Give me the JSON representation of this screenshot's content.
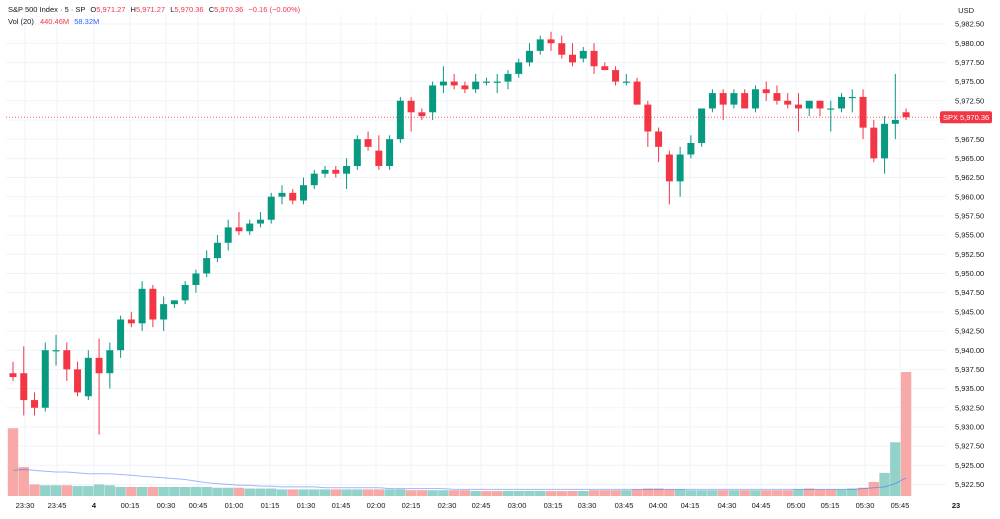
{
  "header": {
    "symbol": "S&P 500 Index · 5 · SP",
    "o_label": "O",
    "o_value": "5,971.27",
    "h_label": "H",
    "h_value": "5,971.27",
    "l_label": "L",
    "l_value": "5,970.36",
    "c_label": "C",
    "c_value": "5,970.36",
    "change": "−0.16 (−0.00%)",
    "vol_label": "Vol (20)",
    "vol_value": "440.46M",
    "vol_ma_value": "58.32M"
  },
  "currency": "USD",
  "price_tag": {
    "symbol": "SPX",
    "value": "5,970.36"
  },
  "chart_data": {
    "type": "candlestick",
    "title": "",
    "interval": "5",
    "ylim": [
      5920,
      5985
    ],
    "y_ticks": [
      "5,922.50",
      "5,925.00",
      "5,927.50",
      "5,930.00",
      "5,932.50",
      "5,935.00",
      "5,937.50",
      "5,940.00",
      "5,942.50",
      "5,945.00",
      "5,947.50",
      "5,950.00",
      "5,952.50",
      "5,955.00",
      "5,957.50",
      "5,960.00",
      "5,962.50",
      "5,965.00",
      "5,967.50",
      "5,970.00",
      "5,972.50",
      "5,975.00",
      "5,977.50",
      "5,980.00",
      "5,982.50"
    ],
    "x_ticks": [
      "23:30",
      "23:45",
      "4",
      "00:15",
      "00:30",
      "00:45",
      "01:00",
      "01:15",
      "01:30",
      "01:45",
      "02:00",
      "02:15",
      "02:30",
      "02:45",
      "03:00",
      "03:15",
      "03:30",
      "03:45",
      "04:00",
      "04:15",
      "04:30",
      "04:45",
      "05:00",
      "05:15",
      "05:30",
      "05:45",
      "23"
    ],
    "last_price": 5970.36,
    "colors": {
      "up": "#089981",
      "down": "#f23645",
      "vol_up": "#92d2c8",
      "vol_down": "#f7a9a7",
      "vol_ma": "#2962ff"
    },
    "candles": [
      {
        "o": 5937.0,
        "h": 5938.5,
        "l": 5936.0,
        "c": 5936.5
      },
      {
        "o": 5937.0,
        "h": 5940.5,
        "l": 5931.5,
        "c": 5933.5
      },
      {
        "o": 5933.5,
        "h": 5934.5,
        "l": 5931.5,
        "c": 5932.5
      },
      {
        "o": 5932.5,
        "h": 5941.0,
        "l": 5932.0,
        "c": 5940.0
      },
      {
        "o": 5940.0,
        "h": 5942.0,
        "l": 5938.0,
        "c": 5940.0
      },
      {
        "o": 5940.0,
        "h": 5941.0,
        "l": 5936.0,
        "c": 5937.5
      },
      {
        "o": 5937.5,
        "h": 5938.5,
        "l": 5934.0,
        "c": 5934.5
      },
      {
        "o": 5934.0,
        "h": 5940.0,
        "l": 5933.5,
        "c": 5939.0
      },
      {
        "o": 5939.0,
        "h": 5941.5,
        "l": 5929.0,
        "c": 5937.0
      },
      {
        "o": 5937.0,
        "h": 5941.0,
        "l": 5935.0,
        "c": 5940.0
      },
      {
        "o": 5940.0,
        "h": 5944.5,
        "l": 5939.0,
        "c": 5944.0
      },
      {
        "o": 5944.0,
        "h": 5945.0,
        "l": 5943.0,
        "c": 5943.5
      },
      {
        "o": 5943.5,
        "h": 5949.0,
        "l": 5942.5,
        "c": 5948.0
      },
      {
        "o": 5948.0,
        "h": 5948.5,
        "l": 5943.0,
        "c": 5944.0
      },
      {
        "o": 5944.0,
        "h": 5947.0,
        "l": 5942.5,
        "c": 5946.0
      },
      {
        "o": 5946.0,
        "h": 5946.5,
        "l": 5945.5,
        "c": 5946.5
      },
      {
        "o": 5946.5,
        "h": 5949.0,
        "l": 5946.0,
        "c": 5948.5
      },
      {
        "o": 5948.5,
        "h": 5950.5,
        "l": 5947.5,
        "c": 5950.0
      },
      {
        "o": 5950.0,
        "h": 5953.0,
        "l": 5949.5,
        "c": 5952.0
      },
      {
        "o": 5952.0,
        "h": 5955.0,
        "l": 5951.5,
        "c": 5954.0
      },
      {
        "o": 5954.0,
        "h": 5957.0,
        "l": 5953.0,
        "c": 5956.0
      },
      {
        "o": 5956.0,
        "h": 5958.0,
        "l": 5955.0,
        "c": 5955.5
      },
      {
        "o": 5955.5,
        "h": 5957.0,
        "l": 5955.0,
        "c": 5956.5
      },
      {
        "o": 5956.5,
        "h": 5958.0,
        "l": 5956.0,
        "c": 5957.0
      },
      {
        "o": 5957.0,
        "h": 5960.5,
        "l": 5956.5,
        "c": 5960.0
      },
      {
        "o": 5960.0,
        "h": 5961.5,
        "l": 5959.0,
        "c": 5960.5
      },
      {
        "o": 5960.5,
        "h": 5961.0,
        "l": 5959.0,
        "c": 5959.5
      },
      {
        "o": 5959.5,
        "h": 5962.5,
        "l": 5959.0,
        "c": 5961.5
      },
      {
        "o": 5961.5,
        "h": 5963.5,
        "l": 5961.0,
        "c": 5963.0
      },
      {
        "o": 5963.0,
        "h": 5964.0,
        "l": 5962.5,
        "c": 5963.5
      },
      {
        "o": 5963.5,
        "h": 5964.0,
        "l": 5962.5,
        "c": 5963.0
      },
      {
        "o": 5963.0,
        "h": 5965.0,
        "l": 5961.0,
        "c": 5964.0
      },
      {
        "o": 5964.0,
        "h": 5968.0,
        "l": 5963.5,
        "c": 5967.5
      },
      {
        "o": 5967.5,
        "h": 5968.5,
        "l": 5966.0,
        "c": 5966.5
      },
      {
        "o": 5966.0,
        "h": 5968.0,
        "l": 5963.5,
        "c": 5964.0
      },
      {
        "o": 5964.0,
        "h": 5968.0,
        "l": 5963.5,
        "c": 5967.5
      },
      {
        "o": 5967.5,
        "h": 5973.0,
        "l": 5967.0,
        "c": 5972.5
      },
      {
        "o": 5972.5,
        "h": 5973.0,
        "l": 5968.5,
        "c": 5971.0
      },
      {
        "o": 5971.0,
        "h": 5971.5,
        "l": 5970.0,
        "c": 5970.5
      },
      {
        "o": 5971.0,
        "h": 5975.0,
        "l": 5970.0,
        "c": 5974.5
      },
      {
        "o": 5974.5,
        "h": 5977.0,
        "l": 5973.5,
        "c": 5975.0
      },
      {
        "o": 5975.0,
        "h": 5976.0,
        "l": 5974.0,
        "c": 5974.5
      },
      {
        "o": 5974.5,
        "h": 5975.0,
        "l": 5973.5,
        "c": 5974.0
      },
      {
        "o": 5974.0,
        "h": 5976.0,
        "l": 5973.5,
        "c": 5975.0
      },
      {
        "o": 5975.0,
        "h": 5975.5,
        "l": 5974.5,
        "c": 5975.0
      },
      {
        "o": 5975.0,
        "h": 5976.0,
        "l": 5973.5,
        "c": 5975.0
      },
      {
        "o": 5975.0,
        "h": 5976.5,
        "l": 5974.0,
        "c": 5976.0
      },
      {
        "o": 5976.0,
        "h": 5978.0,
        "l": 5975.5,
        "c": 5977.5
      },
      {
        "o": 5977.5,
        "h": 5980.0,
        "l": 5977.0,
        "c": 5979.0
      },
      {
        "o": 5979.0,
        "h": 5981.0,
        "l": 5978.5,
        "c": 5980.5
      },
      {
        "o": 5980.5,
        "h": 5981.5,
        "l": 5979.0,
        "c": 5980.0
      },
      {
        "o": 5980.0,
        "h": 5981.0,
        "l": 5978.0,
        "c": 5978.5
      },
      {
        "o": 5978.5,
        "h": 5980.0,
        "l": 5977.0,
        "c": 5977.5
      },
      {
        "o": 5978.0,
        "h": 5979.5,
        "l": 5977.5,
        "c": 5979.0
      },
      {
        "o": 5979.0,
        "h": 5980.0,
        "l": 5976.0,
        "c": 5977.0
      },
      {
        "o": 5977.0,
        "h": 5977.5,
        "l": 5976.5,
        "c": 5976.5
      },
      {
        "o": 5976.5,
        "h": 5977.0,
        "l": 5974.5,
        "c": 5975.0
      },
      {
        "o": 5975.0,
        "h": 5976.0,
        "l": 5974.5,
        "c": 5975.0
      },
      {
        "o": 5975.0,
        "h": 5975.5,
        "l": 5972.0,
        "c": 5972.0
      },
      {
        "o": 5972.0,
        "h": 5972.5,
        "l": 5966.5,
        "c": 5968.5
      },
      {
        "o": 5968.5,
        "h": 5969.0,
        "l": 5964.5,
        "c": 5966.5
      },
      {
        "o": 5965.5,
        "h": 5966.0,
        "l": 5959.0,
        "c": 5962.0
      },
      {
        "o": 5962.0,
        "h": 5966.5,
        "l": 5960.0,
        "c": 5965.5
      },
      {
        "o": 5965.5,
        "h": 5968.0,
        "l": 5965.0,
        "c": 5967.0
      },
      {
        "o": 5967.0,
        "h": 5971.5,
        "l": 5966.5,
        "c": 5971.5
      },
      {
        "o": 5971.5,
        "h": 5974.0,
        "l": 5971.0,
        "c": 5973.5
      },
      {
        "o": 5973.5,
        "h": 5974.0,
        "l": 5970.0,
        "c": 5972.0
      },
      {
        "o": 5972.0,
        "h": 5974.0,
        "l": 5971.5,
        "c": 5973.5
      },
      {
        "o": 5973.5,
        "h": 5974.0,
        "l": 5971.5,
        "c": 5971.5
      },
      {
        "o": 5971.5,
        "h": 5974.5,
        "l": 5971.0,
        "c": 5974.0
      },
      {
        "o": 5974.0,
        "h": 5975.0,
        "l": 5972.5,
        "c": 5973.5
      },
      {
        "o": 5973.5,
        "h": 5974.5,
        "l": 5972.0,
        "c": 5972.5
      },
      {
        "o": 5972.5,
        "h": 5973.5,
        "l": 5971.5,
        "c": 5972.0
      },
      {
        "o": 5972.0,
        "h": 5973.5,
        "l": 5968.5,
        "c": 5971.5
      },
      {
        "o": 5971.5,
        "h": 5972.0,
        "l": 5970.5,
        "c": 5972.5
      },
      {
        "o": 5972.5,
        "h": 5972.5,
        "l": 5970.5,
        "c": 5971.5
      },
      {
        "o": 5971.5,
        "h": 5972.5,
        "l": 5968.5,
        "c": 5971.5
      },
      {
        "o": 5971.5,
        "h": 5973.5,
        "l": 5971.0,
        "c": 5973.0
      },
      {
        "o": 5973.0,
        "h": 5974.0,
        "l": 5971.0,
        "c": 5973.0
      },
      {
        "o": 5973.0,
        "h": 5974.0,
        "l": 5967.5,
        "c": 5969.0
      },
      {
        "o": 5969.0,
        "h": 5970.0,
        "l": 5964.5,
        "c": 5965.0
      },
      {
        "o": 5965.0,
        "h": 5970.5,
        "l": 5963.0,
        "c": 5969.5
      },
      {
        "o": 5969.5,
        "h": 5976.0,
        "l": 5967.5,
        "c": 5970.0
      },
      {
        "o": 5971.0,
        "h": 5971.5,
        "l": 5970.0,
        "c": 5970.36
      }
    ],
    "volume": [
      {
        "v": 82,
        "up": false
      },
      {
        "v": 35,
        "up": false
      },
      {
        "v": 14,
        "up": false
      },
      {
        "v": 13,
        "up": true
      },
      {
        "v": 13,
        "up": true
      },
      {
        "v": 13,
        "up": false
      },
      {
        "v": 12,
        "up": true
      },
      {
        "v": 12,
        "up": true
      },
      {
        "v": 14,
        "up": true
      },
      {
        "v": 13,
        "up": true
      },
      {
        "v": 11,
        "up": true
      },
      {
        "v": 11,
        "up": false
      },
      {
        "v": 11,
        "up": true
      },
      {
        "v": 11,
        "up": false
      },
      {
        "v": 11,
        "up": true
      },
      {
        "v": 11,
        "up": true
      },
      {
        "v": 11,
        "up": true
      },
      {
        "v": 11,
        "up": true
      },
      {
        "v": 11,
        "up": true
      },
      {
        "v": 10,
        "up": true
      },
      {
        "v": 10,
        "up": true
      },
      {
        "v": 10,
        "up": false
      },
      {
        "v": 9,
        "up": true
      },
      {
        "v": 9,
        "up": true
      },
      {
        "v": 9,
        "up": true
      },
      {
        "v": 8,
        "up": true
      },
      {
        "v": 8,
        "up": false
      },
      {
        "v": 8,
        "up": true
      },
      {
        "v": 8,
        "up": true
      },
      {
        "v": 8,
        "up": true
      },
      {
        "v": 8,
        "up": false
      },
      {
        "v": 8,
        "up": true
      },
      {
        "v": 8,
        "up": true
      },
      {
        "v": 8,
        "up": false
      },
      {
        "v": 8,
        "up": false
      },
      {
        "v": 8,
        "up": true
      },
      {
        "v": 8,
        "up": true
      },
      {
        "v": 7,
        "up": false
      },
      {
        "v": 7,
        "up": false
      },
      {
        "v": 7,
        "up": true
      },
      {
        "v": 7,
        "up": true
      },
      {
        "v": 7,
        "up": false
      },
      {
        "v": 7,
        "up": false
      },
      {
        "v": 6,
        "up": true
      },
      {
        "v": 6,
        "up": false
      },
      {
        "v": 6,
        "up": false
      },
      {
        "v": 6,
        "up": true
      },
      {
        "v": 6,
        "up": true
      },
      {
        "v": 6,
        "up": true
      },
      {
        "v": 6,
        "up": true
      },
      {
        "v": 6,
        "up": false
      },
      {
        "v": 6,
        "up": false
      },
      {
        "v": 6,
        "up": false
      },
      {
        "v": 6,
        "up": true
      },
      {
        "v": 7,
        "up": false
      },
      {
        "v": 7,
        "up": false
      },
      {
        "v": 7,
        "up": false
      },
      {
        "v": 7,
        "up": true
      },
      {
        "v": 8,
        "up": false
      },
      {
        "v": 9,
        "up": false
      },
      {
        "v": 9,
        "up": false
      },
      {
        "v": 8,
        "up": false
      },
      {
        "v": 8,
        "up": true
      },
      {
        "v": 7,
        "up": true
      },
      {
        "v": 7,
        "up": true
      },
      {
        "v": 7,
        "up": true
      },
      {
        "v": 7,
        "up": false
      },
      {
        "v": 7,
        "up": true
      },
      {
        "v": 7,
        "up": false
      },
      {
        "v": 7,
        "up": true
      },
      {
        "v": 7,
        "up": false
      },
      {
        "v": 7,
        "up": false
      },
      {
        "v": 7,
        "up": false
      },
      {
        "v": 8,
        "up": true
      },
      {
        "v": 9,
        "up": false
      },
      {
        "v": 8,
        "up": false
      },
      {
        "v": 8,
        "up": false
      },
      {
        "v": 8,
        "up": true
      },
      {
        "v": 9,
        "up": true
      },
      {
        "v": 10,
        "up": false
      },
      {
        "v": 17,
        "up": false
      },
      {
        "v": 28,
        "up": true
      },
      {
        "v": 65,
        "up": true
      },
      {
        "v": 150,
        "up": false
      }
    ],
    "volume_ma": [
      31,
      32,
      31,
      30,
      29,
      29,
      28,
      27,
      27,
      27,
      26,
      25,
      24,
      23,
      22,
      21,
      20,
      18,
      16,
      15,
      14,
      13,
      13,
      12,
      12,
      11,
      11,
      11,
      11,
      10,
      10,
      10,
      10,
      10,
      10,
      9,
      9,
      9,
      9,
      9,
      9,
      8,
      8,
      8,
      8,
      8,
      8,
      8,
      8,
      8,
      8,
      8,
      8,
      8,
      8,
      8,
      8,
      8,
      8,
      8,
      8,
      8,
      8,
      8,
      8,
      8,
      8,
      8,
      8,
      8,
      8,
      8,
      8,
      8,
      8,
      8,
      8,
      8,
      8,
      9,
      10,
      11,
      15,
      22
    ]
  }
}
